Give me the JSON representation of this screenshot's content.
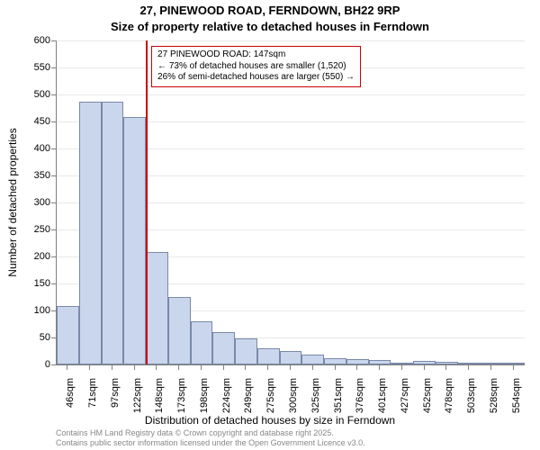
{
  "chart": {
    "type": "histogram",
    "title": "27, PINEWOOD ROAD, FERNDOWN, BH22 9RP",
    "title_fontsize": 13,
    "subtitle": "Size of property relative to detached houses in Ferndown",
    "subtitle_fontsize": 13,
    "yaxis_title": "Number of detached properties",
    "xaxis_title": "Distribution of detached houses by size in Ferndown",
    "axis_title_fontsize": 12,
    "tick_fontsize": 11,
    "ylim": [
      0,
      600
    ],
    "ytick_step": 50,
    "yticks": [
      0,
      50,
      100,
      150,
      200,
      250,
      300,
      350,
      400,
      450,
      500,
      550,
      600
    ],
    "xtick_labels": [
      "46sqm",
      "71sqm",
      "97sqm",
      "122sqm",
      "148sqm",
      "173sqm",
      "198sqm",
      "224sqm",
      "249sqm",
      "275sqm",
      "300sqm",
      "325sqm",
      "351sqm",
      "376sqm",
      "401sqm",
      "427sqm",
      "452sqm",
      "478sqm",
      "503sqm",
      "528sqm",
      "554sqm"
    ],
    "values": [
      108,
      487,
      487,
      458,
      208,
      125,
      80,
      60,
      48,
      30,
      25,
      18,
      12,
      10,
      8,
      3,
      6,
      5,
      2,
      3,
      4
    ],
    "bar_fill": "#c9d6ec",
    "bar_border": "#7a89a8",
    "grid_color": "#e8e8e8",
    "axis_color": "#808080",
    "background": "#ffffff",
    "marker_line": {
      "color": "#cc0000",
      "x_index": 4
    },
    "annotation_box": {
      "border_color": "#cc0000",
      "bg_color": "#ffffff",
      "fontsize": 10,
      "line1": "27 PINEWOOD ROAD: 147sqm",
      "line2": "← 73% of detached houses are smaller (1,520)",
      "line3": "26% of semi-detached houses are larger (550) →"
    },
    "footer": {
      "line1": "Contains HM Land Registry data © Crown copyright and database right 2025.",
      "line2": "Contains public sector information licensed under the Open Government Licence v3.0.",
      "color": "#888888",
      "fontsize": 9
    }
  }
}
